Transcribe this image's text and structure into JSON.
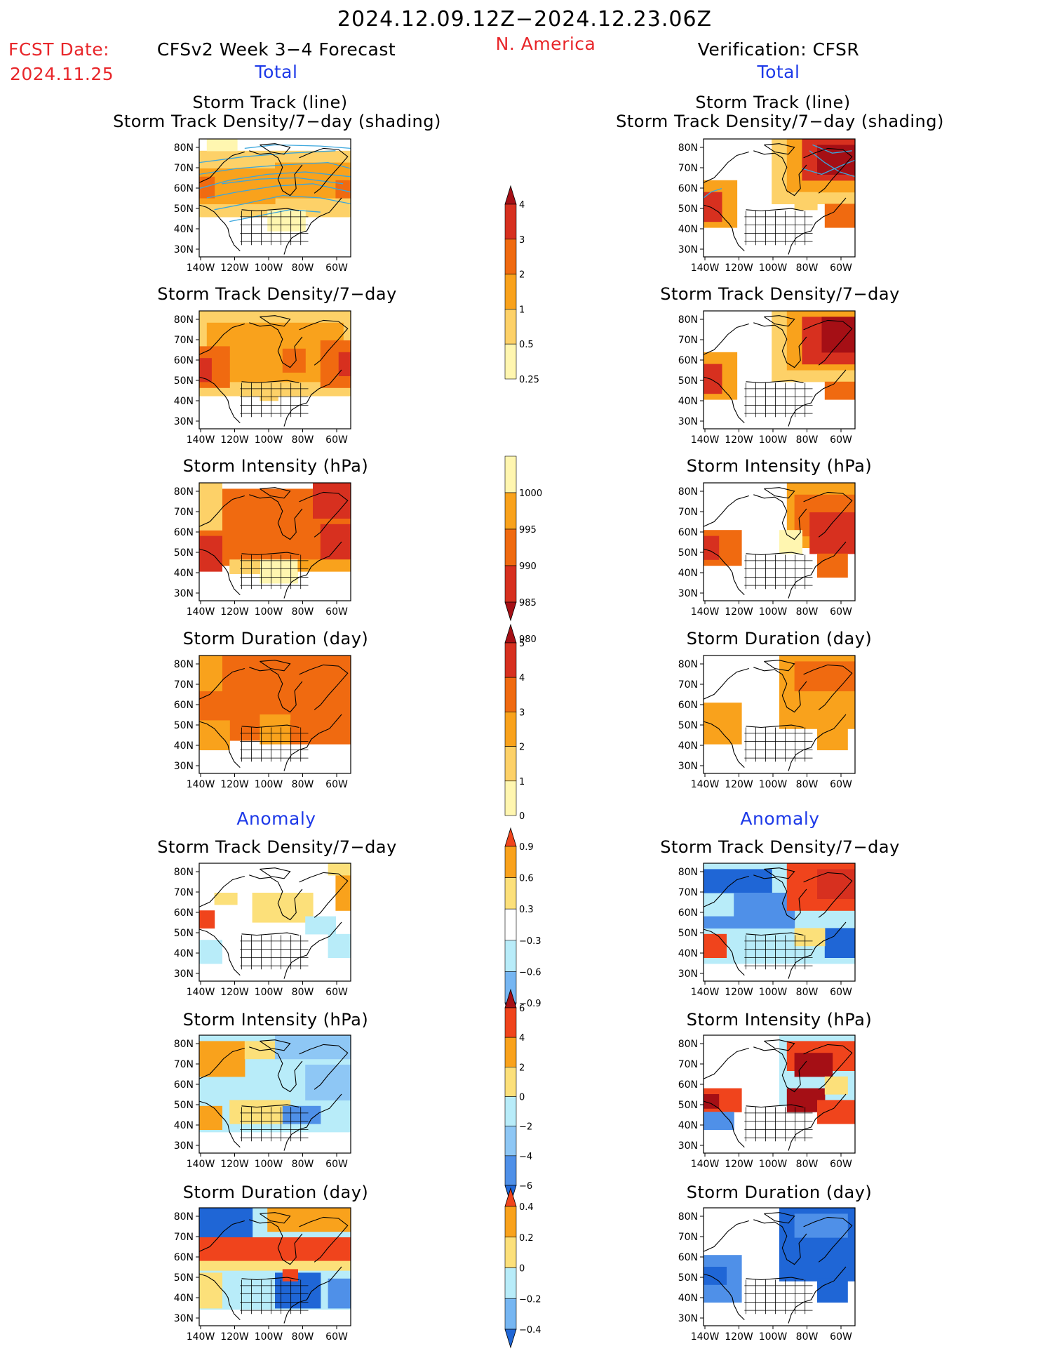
{
  "header": {
    "period": "2024.12.09.12Z−2024.12.23.06Z",
    "region": "N. America",
    "fcst_label": "FCST Date:",
    "fcst_date": "2024.11.25",
    "model_title": "CFSv2 Week 3−4 Forecast",
    "verif_title": "Verification: CFSR",
    "left_subtitle": "Total",
    "right_subtitle": "Total"
  },
  "sections": {
    "anomaly_left": "Anomaly",
    "anomaly_right": "Anomaly"
  },
  "panels": {
    "l1_title_a": "Storm Track (line)",
    "l1_title_b": "Storm Track Density/7−day (shading)",
    "r1_title_a": "Storm Track (line)",
    "r1_title_b": "Storm Track Density/7−day (shading)",
    "l2_title": "Storm Track Density/7−day",
    "r2_title": "Storm Track Density/7−day",
    "l3_title": "Storm Intensity (hPa)",
    "r3_title": "Storm Intensity (hPa)",
    "l4_title": "Storm Duration (day)",
    "r4_title": "Storm Duration (day)",
    "l5_title": "Storm Track Density/7−day",
    "r5_title": "Storm Track Density/7−day",
    "l6_title": "Storm Intensity (hPa)",
    "r6_title": "Storm Intensity (hPa)",
    "l7_title": "Storm Duration (day)",
    "r7_title": "Storm Duration (day)"
  },
  "map_axes": {
    "lat_labels": [
      "80N",
      "70N",
      "60N",
      "50N",
      "40N",
      "30N"
    ],
    "lon_labels": [
      "140W",
      "120W",
      "100W",
      "80W",
      "60W"
    ]
  },
  "colorbars": {
    "density": {
      "labels": [
        "4",
        "3",
        "2",
        "1",
        "0.5",
        "0.25"
      ],
      "colors": [
        "#a50f15",
        "#d7301f",
        "#f06a10",
        "#f9a21c",
        "#fdd168",
        "#fff6b0"
      ]
    },
    "intensity": {
      "labels": [
        "1000",
        "995",
        "990",
        "985",
        "980"
      ],
      "colors": [
        "#fff6b0",
        "#f9a21c",
        "#f06a10",
        "#d7301f",
        "#a50f15"
      ]
    },
    "duration": {
      "labels": [
        "5",
        "4",
        "3",
        "2",
        "1",
        "0"
      ],
      "colors": [
        "#a50f15",
        "#d7301f",
        "#f06a10",
        "#f9a21c",
        "#fdd168",
        "#fff6b0"
      ]
    },
    "density_anom": {
      "labels": [
        "0.9",
        "0.6",
        "0.3",
        "−0.3",
        "−0.6",
        "−0.9"
      ],
      "colors": [
        "#f0441c",
        "#f9a21c",
        "#fce07a",
        "#ffffff",
        "#b8ecf9",
        "#76b6f2",
        "#1f66d6"
      ]
    },
    "intensity_anom": {
      "labels": [
        "6",
        "4",
        "2",
        "0",
        "−2",
        "−4",
        "−6"
      ],
      "colors": [
        "#a50f15",
        "#f0441c",
        "#f9a21c",
        "#fce07a",
        "#b8ecf9",
        "#8ec7f5",
        "#4f90e8",
        "#1f66d6"
      ]
    },
    "duration_anom": {
      "labels": [
        "0.4",
        "0.2",
        "0",
        "−0.2",
        "−0.4"
      ],
      "colors": [
        "#f0441c",
        "#f9a21c",
        "#fce07a",
        "#b8ecf9",
        "#76b6f2",
        "#1f66d6"
      ]
    }
  },
  "palette": {
    "track_line": "#3aa6dd",
    "coast": "#000000",
    "header_red": "#e8262a",
    "header_blue": "#1d39e8"
  }
}
